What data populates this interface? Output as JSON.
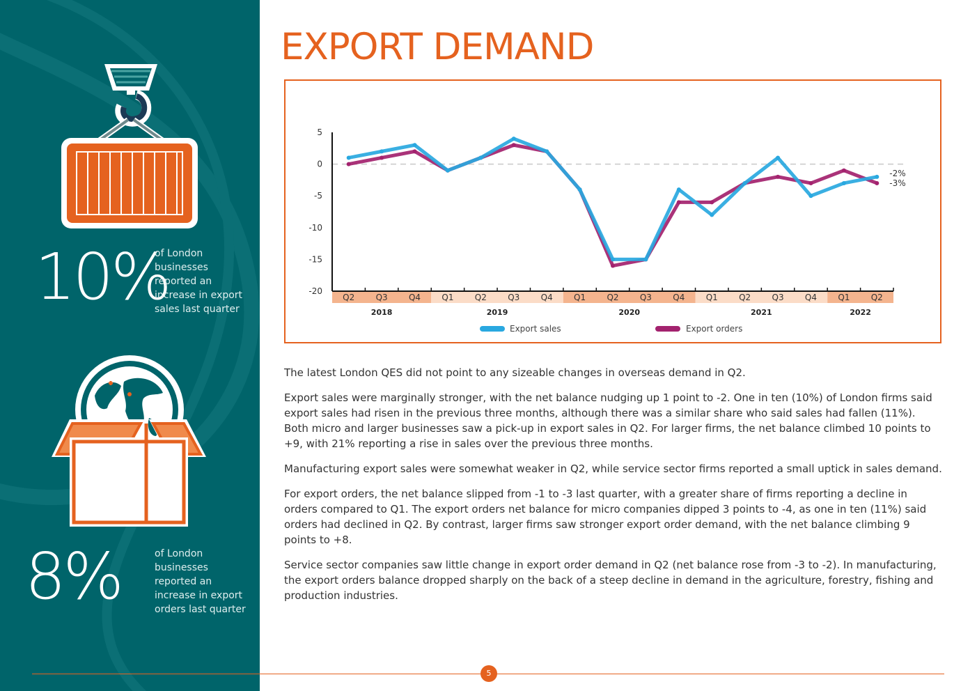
{
  "page": {
    "title": "EXPORT DEMAND",
    "page_number": "5"
  },
  "colors": {
    "teal": "#00646a",
    "orange": "#e5621f",
    "export_sales": "#29a8e0",
    "export_orders": "#a3226e"
  },
  "sidebar": {
    "stat1": {
      "value": "10%",
      "description": "of London businesses reported an increase in export sales last quarter",
      "icon": "shipping-container-crane-icon"
    },
    "stat2": {
      "value": "8%",
      "description": "of London businesses reported an increase in export orders last quarter",
      "icon": "globe-in-box-icon"
    }
  },
  "chart_data": {
    "type": "line",
    "title": "",
    "categories": [
      "Q2",
      "Q3",
      "Q4",
      "Q1",
      "Q2",
      "Q3",
      "Q4",
      "Q1",
      "Q2",
      "Q3",
      "Q4",
      "Q1",
      "Q2",
      "Q3",
      "Q4",
      "Q1",
      "Q2"
    ],
    "years": [
      {
        "label": "2018",
        "quarters": 3
      },
      {
        "label": "2019",
        "quarters": 4
      },
      {
        "label": "2020",
        "quarters": 4
      },
      {
        "label": "2021",
        "quarters": 4
      },
      {
        "label": "2022",
        "quarters": 2
      }
    ],
    "y_ticks": [
      "5",
      "0",
      "-5",
      "-10",
      "-15",
      "-20"
    ],
    "ylim": [
      -20,
      5
    ],
    "zero_line": "dashed",
    "series": [
      {
        "name": "Export sales",
        "values": [
          1,
          2,
          3,
          -1,
          1,
          4,
          2,
          -4,
          -15,
          -15,
          -4,
          -8,
          -3,
          1,
          -5,
          -3,
          -2
        ]
      },
      {
        "name": "Export orders",
        "values": [
          0,
          1,
          2,
          -1,
          1,
          3,
          2,
          -4,
          -16,
          -15,
          -6,
          -6,
          -3,
          -2,
          -3,
          -1,
          -3
        ]
      }
    ],
    "end_labels": [
      "-2%",
      "-3%"
    ],
    "legend": [
      "Export sales",
      "Export orders"
    ]
  },
  "body": {
    "p1": "The latest London QES did not point to any sizeable changes in overseas demand in Q2.",
    "p2": "Export sales were marginally stronger, with the net balance nudging up 1 point to -2. One in ten (10%) of London firms said export sales had risen in the previous three months, although there was a similar share who said sales had fallen (11%). Both micro and larger businesses saw a pick-up in export sales in Q2. For larger firms, the net balance climbed 10 points to +9, with 21% reporting a rise in sales over the previous three months.",
    "p3": "Manufacturing export sales were somewhat weaker in Q2, while service sector firms reported a small uptick in sales demand.",
    "p4": "For export orders, the net balance slipped from -1 to -3 last quarter, with a greater share of firms reporting a decline in orders compared to Q1. The export orders net balance for micro companies dipped 3 points to -4, as one in ten (11%) said orders had declined in Q2. By contrast, larger firms saw stronger export order demand, with the net balance climbing 9 points to +8.",
    "p5": "Service sector companies saw little change in export order demand in Q2 (net balance rose from -3 to -2). In manufacturing, the export orders balance dropped sharply on the back of a steep decline in demand in the agriculture, forestry, fishing and production industries."
  }
}
